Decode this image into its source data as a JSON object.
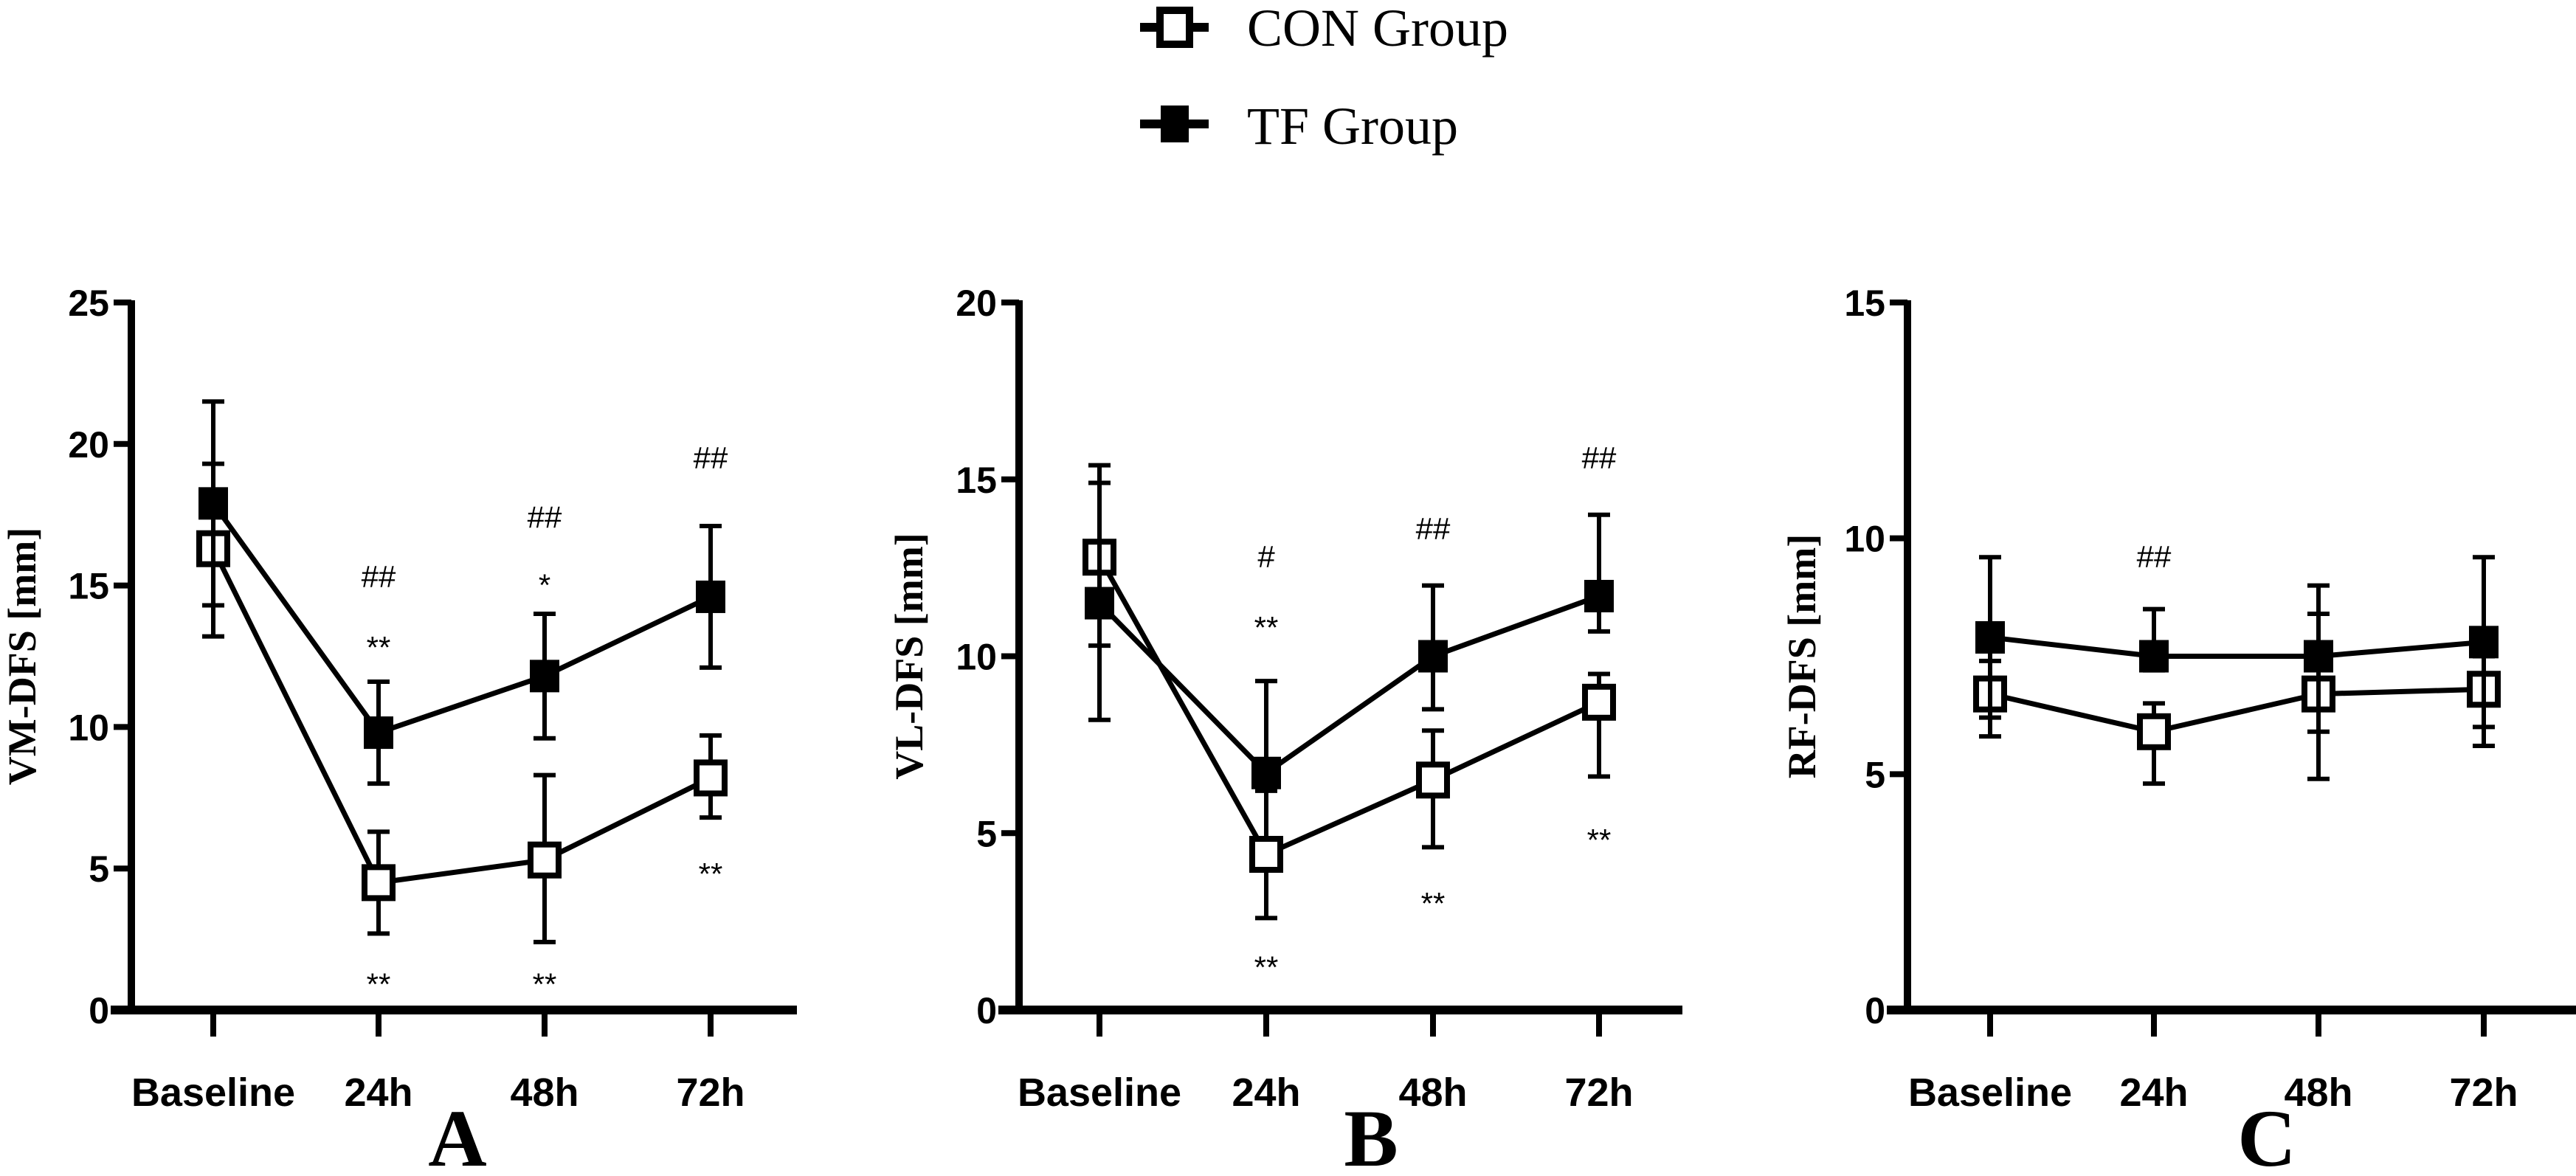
{
  "legend": {
    "items": [
      {
        "name": "CON Group",
        "marker": "open-square",
        "color": "#000000"
      },
      {
        "name": "TF Group",
        "marker": "filled-square",
        "color": "#000000"
      }
    ]
  },
  "chart_data": [
    {
      "type": "line",
      "panel": "A",
      "title": "",
      "xlabel": "",
      "ylabel": "VM-DFS [mm]",
      "categories": [
        "Baseline",
        "24h",
        "48h",
        "72h"
      ],
      "ylim": [
        0,
        25
      ],
      "yticks": [
        "0",
        "5",
        "10",
        "15",
        "20",
        "25"
      ],
      "series": [
        {
          "name": "CON Group",
          "values": [
            16.3,
            4.5,
            5.3,
            8.2
          ],
          "err_upper": [
            19.3,
            6.3,
            8.3,
            9.7
          ],
          "err_lower": [
            13.2,
            2.7,
            2.4,
            6.8
          ]
        },
        {
          "name": "TF Group",
          "values": [
            17.9,
            9.8,
            11.8,
            14.6
          ],
          "err_upper": [
            21.5,
            11.6,
            14.0,
            17.1
          ],
          "err_lower": [
            14.3,
            8.0,
            9.6,
            12.1
          ]
        }
      ],
      "annotations": [
        {
          "category": "24h",
          "value": 15.3,
          "text": "##"
        },
        {
          "category": "24h",
          "value": 12.8,
          "text": "**"
        },
        {
          "category": "24h",
          "value": 0.9,
          "text": "**"
        },
        {
          "category": "48h",
          "value": 17.4,
          "text": "##"
        },
        {
          "category": "48h",
          "value": 15.0,
          "text": "*"
        },
        {
          "category": "48h",
          "value": 0.9,
          "text": "**"
        },
        {
          "category": "72h",
          "value": 19.5,
          "text": "##"
        },
        {
          "category": "72h",
          "value": 4.8,
          "text": "**"
        }
      ]
    },
    {
      "type": "line",
      "panel": "B",
      "title": "",
      "xlabel": "",
      "ylabel": "VL-DFS [mm]",
      "categories": [
        "Baseline",
        "24h",
        "48h",
        "72h"
      ],
      "ylim": [
        0,
        20
      ],
      "yticks": [
        "0",
        "5",
        "10",
        "15",
        "20"
      ],
      "series": [
        {
          "name": "CON Group",
          "values": [
            12.8,
            4.4,
            6.5,
            8.7
          ],
          "err_upper": [
            14.9,
            6.2,
            7.9,
            9.5
          ],
          "err_lower": [
            10.3,
            2.6,
            4.6,
            6.6
          ]
        },
        {
          "name": "TF Group",
          "values": [
            11.5,
            6.7,
            10.0,
            11.7
          ],
          "err_upper": [
            15.4,
            9.3,
            12.0,
            14.0
          ],
          "err_lower": [
            8.2,
            6.2,
            8.5,
            10.7
          ]
        }
      ],
      "annotations": [
        {
          "category": "24h",
          "value": 12.8,
          "text": "#"
        },
        {
          "category": "24h",
          "value": 10.8,
          "text": "**"
        },
        {
          "category": "24h",
          "value": 1.2,
          "text": "**"
        },
        {
          "category": "48h",
          "value": 13.6,
          "text": "##"
        },
        {
          "category": "48h",
          "value": 3.0,
          "text": "**"
        },
        {
          "category": "72h",
          "value": 15.6,
          "text": "##"
        },
        {
          "category": "72h",
          "value": 4.8,
          "text": "**"
        }
      ]
    },
    {
      "type": "line",
      "panel": "C",
      "title": "",
      "xlabel": "",
      "ylabel": "RF-DFS [mm]",
      "categories": [
        "Baseline",
        "24h",
        "48h",
        "72h"
      ],
      "ylim": [
        0,
        15
      ],
      "yticks": [
        "0",
        "5",
        "10",
        "15"
      ],
      "series": [
        {
          "name": "CON Group",
          "values": [
            6.7,
            5.9,
            6.7,
            6.8
          ],
          "err_upper": [
            7.4,
            6.5,
            8.4,
            7.5
          ],
          "err_lower": [
            5.8,
            4.8,
            4.9,
            5.6
          ]
        },
        {
          "name": "TF Group",
          "values": [
            7.9,
            7.5,
            7.5,
            7.8
          ],
          "err_upper": [
            9.6,
            8.5,
            9.0,
            9.6
          ],
          "err_lower": [
            6.2,
            7.2,
            5.9,
            6.0
          ]
        }
      ],
      "annotations": [
        {
          "category": "24h",
          "value": 9.6,
          "text": "##"
        }
      ]
    }
  ],
  "panel_letters": [
    "A",
    "B",
    "C"
  ]
}
